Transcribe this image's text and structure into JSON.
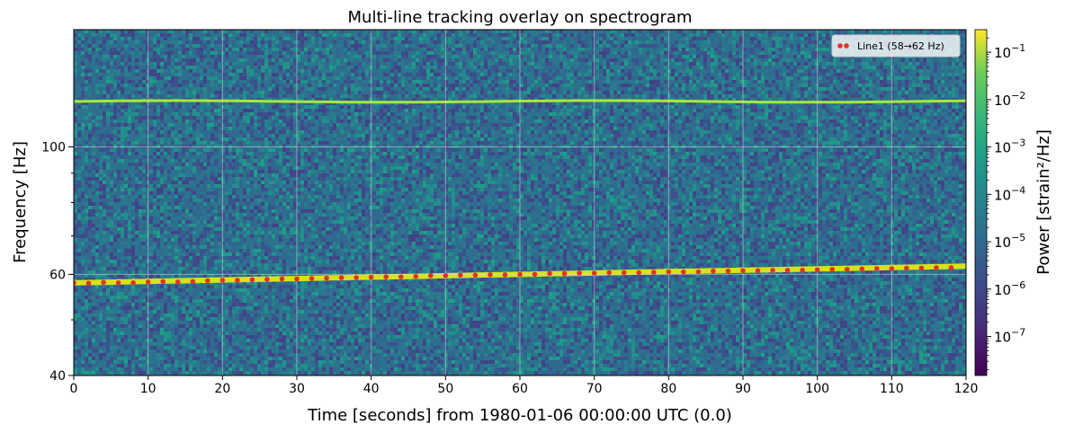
{
  "chart_data": {
    "type": "heatmap",
    "title": "Multi-line tracking overlay on spectrogram",
    "xlabel": "Time [seconds] from 1980-01-06 00:00:00 UTC (0.0)",
    "ylabel": "Frequency [Hz]",
    "xlim": [
      0,
      120
    ],
    "ylim": [
      40,
      160
    ],
    "yscale": "log",
    "xticks": [
      0,
      10,
      20,
      30,
      40,
      50,
      60,
      70,
      80,
      90,
      100,
      110,
      120
    ],
    "xtick_labels": [
      "0",
      "10",
      "20",
      "30",
      "40",
      "50",
      "60",
      "70",
      "80",
      "90",
      "100",
      "110",
      "120"
    ],
    "yticks": [
      40,
      60,
      100
    ],
    "ytick_labels": [
      "40",
      "60",
      "100"
    ],
    "grid": true,
    "colormap": "viridis",
    "colorbar": {
      "label": "Power [strain²/Hz]",
      "scale": "log",
      "range": [
        1.5e-08,
        0.3
      ],
      "ticks": [
        1e-07,
        1e-06,
        1e-05,
        0.0001,
        0.001,
        0.01,
        0.1
      ],
      "tick_labels": [
        {
          "base": "10",
          "exp": "−7"
        },
        {
          "base": "10",
          "exp": "−6"
        },
        {
          "base": "10",
          "exp": "−5"
        },
        {
          "base": "10",
          "exp": "−4"
        },
        {
          "base": "10",
          "exp": "−3"
        },
        {
          "base": "10",
          "exp": "−2"
        },
        {
          "base": "10",
          "exp": "−1"
        }
      ]
    },
    "bright_lines": [
      {
        "from": [
          0,
          58
        ],
        "to": [
          120,
          62
        ],
        "color": "#d7e21a"
      },
      {
        "from": [
          0,
          120
        ],
        "to": [
          120,
          120
        ],
        "color": "#a8e83a"
      }
    ],
    "series": [
      {
        "name": "Line1 (58→62 Hz)",
        "type": "scatter",
        "color": "#e0312b",
        "x": [
          0,
          2,
          4,
          6,
          8,
          10,
          12,
          14,
          16,
          18,
          20,
          22,
          24,
          26,
          28,
          30,
          32,
          34,
          36,
          38,
          40,
          42,
          44,
          46,
          48,
          50,
          52,
          54,
          56,
          58,
          60,
          62,
          64,
          66,
          68,
          70,
          72,
          74,
          76,
          78,
          80,
          82,
          84,
          86,
          88,
          90,
          92,
          94,
          96,
          98,
          100,
          102,
          104,
          106,
          108,
          110,
          112,
          114,
          116,
          118
        ],
        "y": [
          58.0,
          57.9,
          58.1,
          58.0,
          58.0,
          58.2,
          58.3,
          58.2,
          58.3,
          58.5,
          58.6,
          58.6,
          58.7,
          58.8,
          58.9,
          58.9,
          59.0,
          59.1,
          59.2,
          59.2,
          59.3,
          59.4,
          59.4,
          59.5,
          59.7,
          59.7,
          59.8,
          59.8,
          59.9,
          59.9,
          60.0,
          60.0,
          60.2,
          60.2,
          60.3,
          60.3,
          60.4,
          60.4,
          60.4,
          60.5,
          60.6,
          60.6,
          60.6,
          60.8,
          60.8,
          60.9,
          60.9,
          61.0,
          61.0,
          61.0,
          61.1,
          61.2,
          61.2,
          61.3,
          61.4,
          61.4,
          61.5,
          61.5,
          61.6,
          61.6
        ]
      }
    ],
    "legend_location": "upper right"
  }
}
